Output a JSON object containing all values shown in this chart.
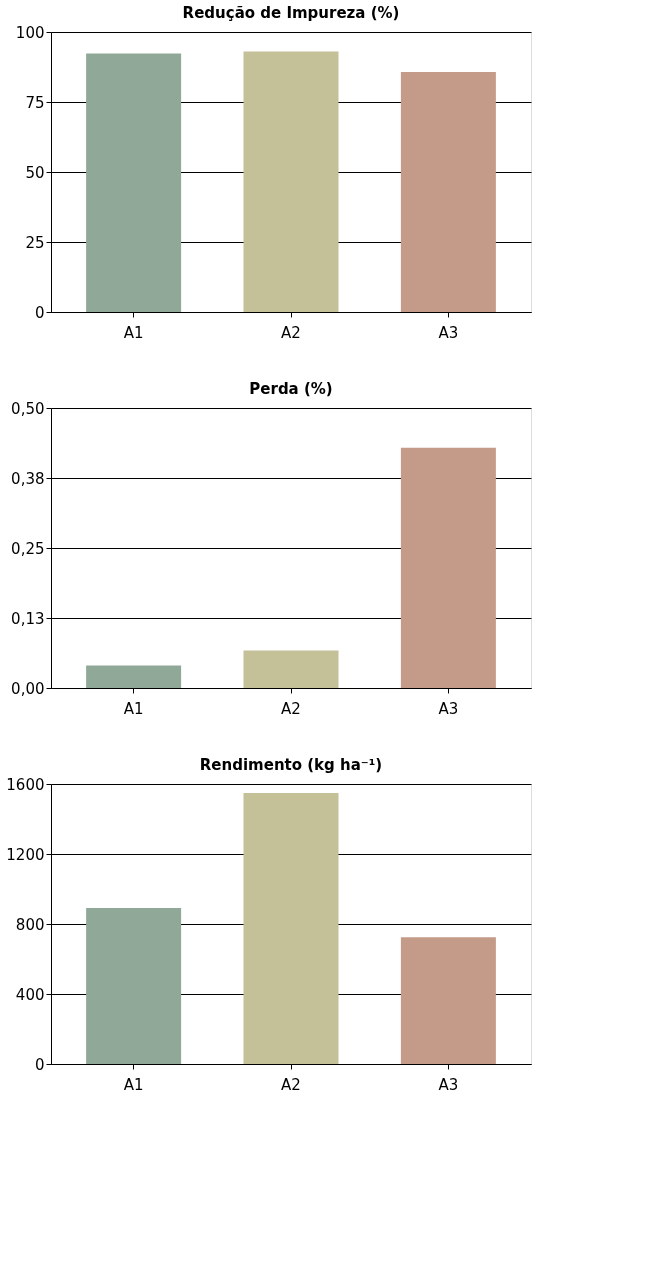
{
  "chart_data": [
    {
      "type": "bar",
      "title": "Redução de Impureza (%)",
      "categories": [
        "A1",
        "A2",
        "A3"
      ],
      "values": [
        92.3,
        93.0,
        85.7
      ],
      "colors": [
        "#8fa898",
        "#c4c098",
        "#c49a88"
      ],
      "ylim": [
        0,
        100
      ],
      "yticks": [
        0,
        25,
        50,
        75,
        100
      ],
      "grid": "y",
      "legend": false
    },
    {
      "type": "bar",
      "title": "Perda (%)",
      "categories": [
        "A1",
        "A2",
        "A3"
      ],
      "values": [
        0.04,
        0.067,
        0.429
      ],
      "colors": [
        "#8fa898",
        "#c4c098",
        "#c49a88"
      ],
      "ylim": [
        0,
        0.5
      ],
      "yticks": [
        {
          "value": 0,
          "label": "0,00"
        },
        {
          "value": 0.125,
          "label": "0,13"
        },
        {
          "value": 0.25,
          "label": "0,25"
        },
        {
          "value": 0.375,
          "label": "0,38"
        },
        {
          "value": 0.5,
          "label": "0,50"
        }
      ],
      "grid": "y",
      "legend": false
    },
    {
      "type": "bar",
      "title": "Rendimento (kg ha⁻¹)",
      "categories": [
        "A1",
        "A2",
        "A3"
      ],
      "values": [
        892,
        1548,
        725
      ],
      "colors": [
        "#8fa898",
        "#c4c098",
        "#c49a88"
      ],
      "ylim": [
        0,
        1600
      ],
      "yticks": [
        0,
        400,
        800,
        1200,
        1600
      ],
      "grid": "y",
      "legend": false
    }
  ]
}
